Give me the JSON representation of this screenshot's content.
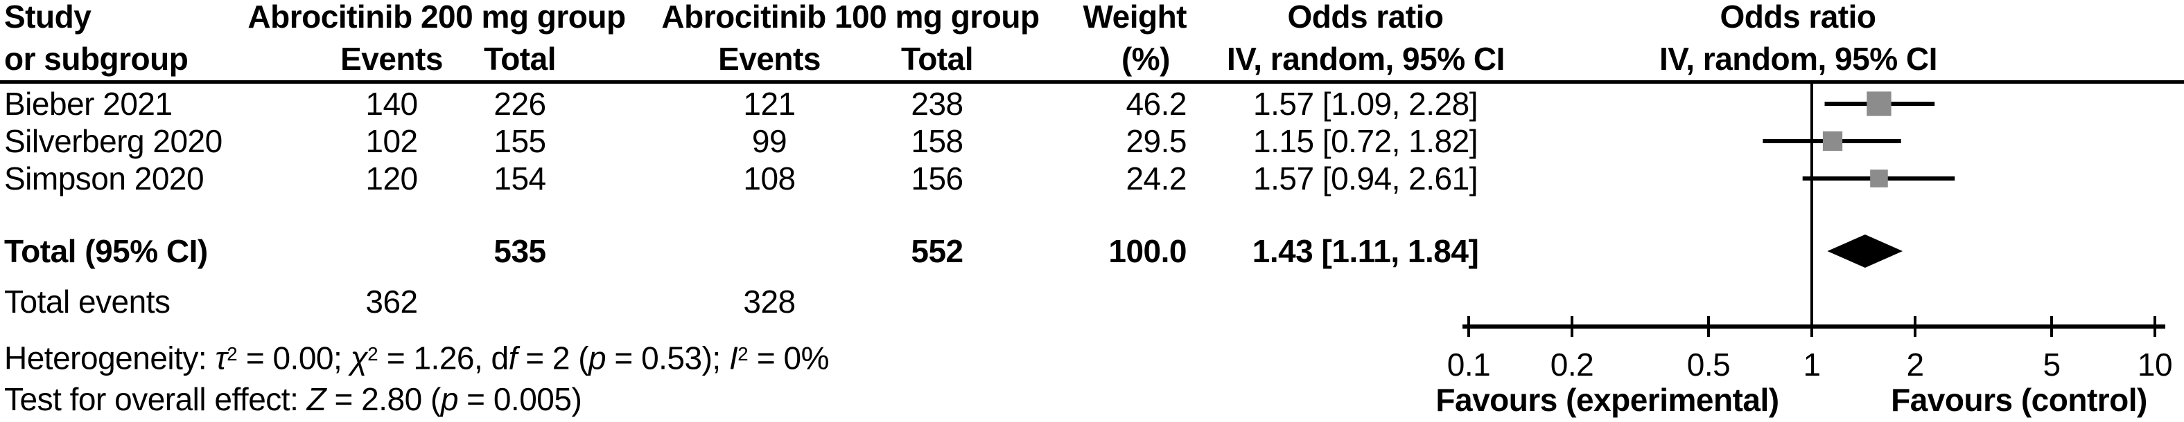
{
  "colors": {
    "marker": "#8c8c8c",
    "line": "#000000"
  },
  "table": {
    "header": {
      "study_line1": "Study",
      "study_line2": "or subgroup",
      "group1": "Abrocitinib 200 mg group",
      "group2": "Abrocitinib 100 mg group",
      "events1": "Events",
      "total1": "Total",
      "events2": "Events",
      "total2": "Total",
      "weight_line1": "Weight",
      "weight_line2": "(%)",
      "or_line1": "Odds ratio",
      "or_line2": "IV, random, 95% CI",
      "plot_line1": "Odds ratio",
      "plot_line2": "IV, random, 95% CI"
    },
    "rows": [
      {
        "study": "Bieber 2021",
        "events1": "140",
        "total1": "226",
        "events2": "121",
        "total2": "238",
        "weight": "46.2",
        "or_ci": "1.57 [1.09, 2.28]"
      },
      {
        "study": "Silverberg 2020",
        "events1": "102",
        "total1": "155",
        "events2": "99",
        "total2": "158",
        "weight": "29.5",
        "or_ci": "1.15 [0.72, 1.82]"
      },
      {
        "study": "Simpson 2020",
        "events1": "120",
        "total1": "154",
        "events2": "108",
        "total2": "156",
        "weight": "24.2",
        "or_ci": "1.57 [0.94, 2.61]"
      }
    ],
    "total_row": {
      "label": "Total (95% CI)",
      "total1": "535",
      "total2": "552",
      "weight": "100.0",
      "or_ci": "1.43 [1.11, 1.84]"
    },
    "total_events_row": {
      "label": "Total events",
      "events1": "362",
      "events2": "328"
    },
    "footnotes": [
      {
        "segments": [
          {
            "t": "Heterogeneity: "
          },
          {
            "t": "τ",
            "i": true
          },
          {
            "t": "2",
            "sup": true
          },
          {
            "t": " = 0.00; "
          },
          {
            "t": "χ",
            "i": true
          },
          {
            "t": "2",
            "sup": true
          },
          {
            "t": " = 1.26, d"
          },
          {
            "t": "f",
            "i": true
          },
          {
            "t": " = 2 ("
          },
          {
            "t": "p",
            "i": true
          },
          {
            "t": " = 0.53); "
          },
          {
            "t": "I",
            "i": true
          },
          {
            "t": "2",
            "sup": true
          },
          {
            "t": " = 0%"
          }
        ]
      },
      {
        "segments": [
          {
            "t": "Test for overall effect: "
          },
          {
            "t": "Z",
            "i": true
          },
          {
            "t": " = 2.80 ("
          },
          {
            "t": "p",
            "i": true
          },
          {
            "t": " = 0.005)"
          }
        ]
      }
    ]
  },
  "chart_data": {
    "type": "forest",
    "x_scale": "log10",
    "x_range": [
      0.1,
      10
    ],
    "axis_ticks": [
      "0.1",
      "0.2",
      "0.5",
      "1",
      "2",
      "5",
      "10"
    ],
    "effect_measure": "Odds ratio, IV, random, 95% CI",
    "studies": [
      {
        "name": "Bieber 2021",
        "or": 1.57,
        "ci_low": 1.09,
        "ci_high": 2.28,
        "weight": 46.2
      },
      {
        "name": "Silverberg 2020",
        "or": 1.15,
        "ci_low": 0.72,
        "ci_high": 1.82,
        "weight": 29.5
      },
      {
        "name": "Simpson 2020",
        "or": 1.57,
        "ci_low": 0.94,
        "ci_high": 2.61,
        "weight": 24.2
      }
    ],
    "total": {
      "or": 1.43,
      "ci_low": 1.11,
      "ci_high": 1.84
    },
    "null_line": 1,
    "xlabel_left": "Favours (experimental)",
    "xlabel_right": "Favours (control)"
  }
}
